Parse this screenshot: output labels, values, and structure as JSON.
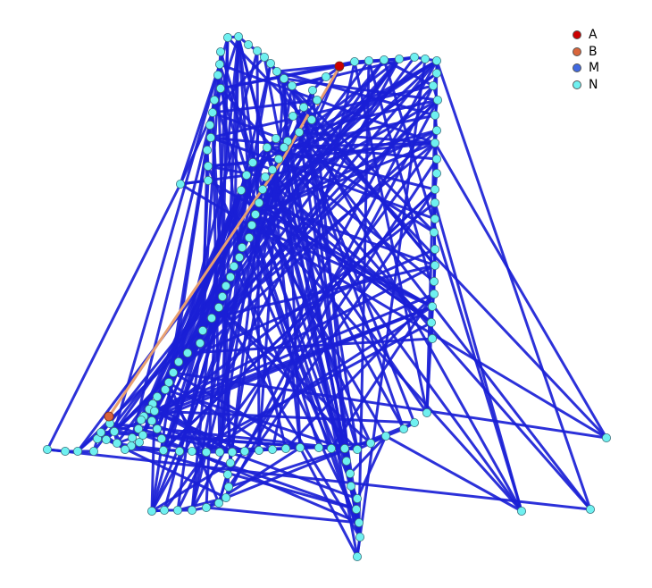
{
  "legend": {
    "items": [
      {
        "label": "A",
        "color": "#cc0000"
      },
      {
        "label": "B",
        "color": "#d9653b"
      },
      {
        "label": "M",
        "color": "#4169e1"
      },
      {
        "label": "N",
        "color": "#6ff0f0"
      }
    ]
  },
  "colors": {
    "edge": "#1a1fd6",
    "highlight_edge": "#e8a070",
    "node_stroke": "#3a6f7a"
  }
}
